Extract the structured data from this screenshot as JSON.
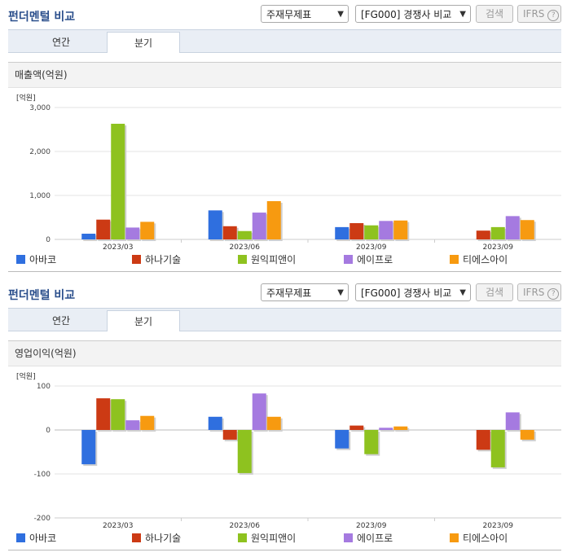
{
  "colors": {
    "title": "#2b4f8c"
  },
  "top": {
    "title": "펀더멘털 비교",
    "select1": "주재무제표",
    "select2": "[FG000] 경쟁사 비교",
    "search": "검색",
    "ifrs": "IFRS",
    "tabs": [
      "연간",
      "분기"
    ],
    "active_tab": "분기",
    "subtitle": "매출액(억원)"
  },
  "bottom": {
    "title": "펀더멘털 비교",
    "select1": "주재무제표",
    "select2": "[FG000] 경쟁사 비교",
    "search": "검색",
    "ifrs": "IFRS",
    "tabs": [
      "연간",
      "분기"
    ],
    "active_tab": "분기",
    "subtitle": "영업이익(억원)"
  },
  "chart_data": [
    {
      "type": "bar",
      "unit_label": "[억원]",
      "categories": [
        "2023/03",
        "2023/06",
        "2023/09",
        "2023/09"
      ],
      "ylim": [
        0,
        3000
      ],
      "yticks": [
        0,
        1000,
        2000,
        3000
      ],
      "ytick_labels": [
        "0",
        "1,000",
        "2,000",
        "3,000"
      ],
      "grid": true,
      "legend_position": "bottom",
      "series": [
        {
          "name": "아바코",
          "color": "#2f6fdf",
          "values": [
            130,
            660,
            280,
            null
          ]
        },
        {
          "name": "하나기술",
          "color": "#cc3a14",
          "values": [
            450,
            300,
            370,
            200
          ]
        },
        {
          "name": "원익피앤이",
          "color": "#8ec21f",
          "values": [
            2630,
            190,
            320,
            280
          ]
        },
        {
          "name": "에이프로",
          "color": "#a57ae0",
          "values": [
            270,
            610,
            420,
            530
          ]
        },
        {
          "name": "티에스아이",
          "color": "#f79a10",
          "values": [
            400,
            870,
            430,
            440
          ]
        }
      ]
    },
    {
      "type": "bar",
      "unit_label": "[억원]",
      "categories": [
        "2023/03",
        "2023/06",
        "2023/09",
        "2023/09"
      ],
      "ylim": [
        -200,
        100
      ],
      "yticks": [
        -200,
        -100,
        0,
        100
      ],
      "ytick_labels": [
        "-200",
        "-100",
        "0",
        "100"
      ],
      "grid": true,
      "legend_position": "bottom",
      "series": [
        {
          "name": "아바코",
          "color": "#2f6fdf",
          "values": [
            -78,
            30,
            -42,
            null
          ]
        },
        {
          "name": "하나기술",
          "color": "#cc3a14",
          "values": [
            72,
            -22,
            10,
            -45
          ]
        },
        {
          "name": "원익피앤이",
          "color": "#8ec21f",
          "values": [
            70,
            -98,
            -55,
            -85
          ]
        },
        {
          "name": "에이프로",
          "color": "#a57ae0",
          "values": [
            22,
            83,
            5,
            40
          ]
        },
        {
          "name": "티에스아이",
          "color": "#f79a10",
          "values": [
            32,
            30,
            8,
            -22
          ]
        }
      ]
    }
  ]
}
